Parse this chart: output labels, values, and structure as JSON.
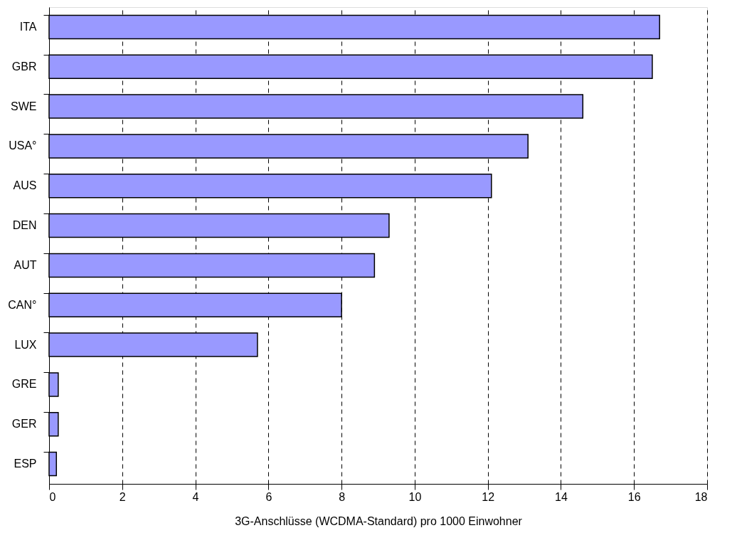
{
  "chart_data": {
    "type": "bar",
    "orientation": "horizontal",
    "categories": [
      "ITA",
      "GBR",
      "SWE",
      "USA°",
      "AUS",
      "DEN",
      "AUT",
      "CAN°",
      "LUX",
      "GRE",
      "GER",
      "ESP"
    ],
    "values": [
      16.7,
      16.5,
      14.6,
      13.1,
      12.1,
      9.3,
      8.9,
      8.0,
      5.7,
      0.25,
      0.25,
      0.2
    ],
    "color": "#9999ff",
    "xlabel": "3G-Anschlüsse (WCDMA-Standard) pro 1000 Einwohner",
    "xlim": [
      0,
      18
    ],
    "xticks": [
      0,
      2,
      4,
      6,
      8,
      10,
      12,
      14,
      16,
      18
    ],
    "grid": "x"
  }
}
